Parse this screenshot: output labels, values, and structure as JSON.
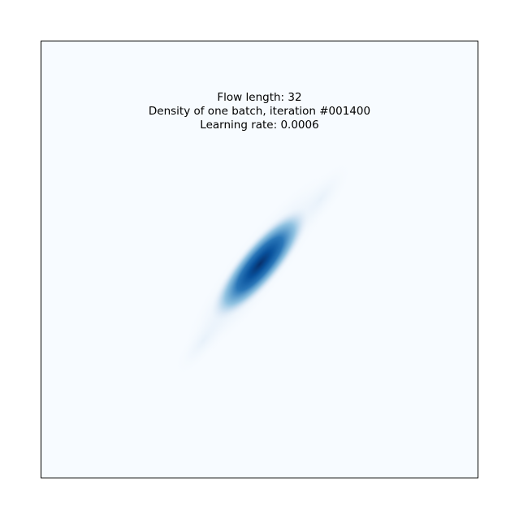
{
  "chart_data": {
    "type": "heatmap",
    "title_lines": [
      "Flow length: 32",
      "Density of one batch, iteration #001400",
      "Learning rate: 0.0006"
    ],
    "xlabel": "",
    "ylabel": "",
    "axis_ticks_visible": false,
    "grid": false,
    "colormap": "Blues",
    "colors": {
      "background": "#f7fbff",
      "low": "#c6dbef",
      "mid": "#4292c6",
      "high": "#08306b"
    },
    "distribution": {
      "shape": "elongated diagonal ellipse",
      "orientation": "lower-left to upper-right",
      "peak_relative_x": 0.5,
      "peak_relative_y": 0.5
    }
  }
}
